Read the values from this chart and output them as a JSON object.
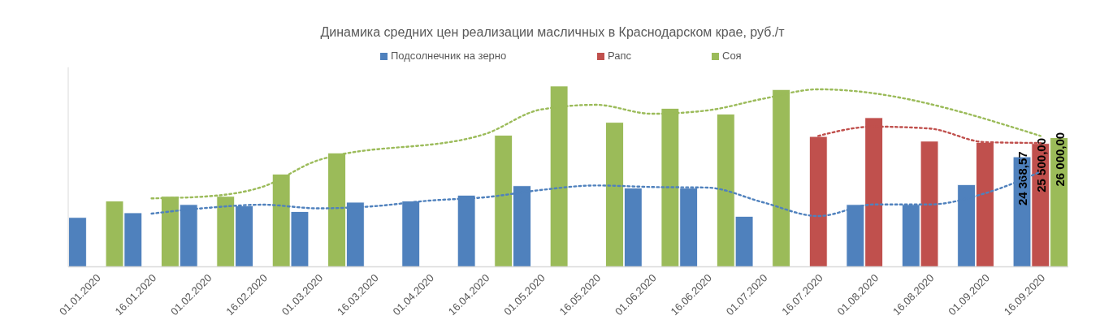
{
  "chart_data": {
    "type": "bar",
    "title": "Динамика средних цен реализации масличных в Краснодарском крае, руб./т",
    "categories": [
      "01.01.2020",
      "16.01.2020",
      "01.02.2020",
      "16.02.2020",
      "01.03.2020",
      "16.03.2020",
      "01.04.2020",
      "16.04.2020",
      "01.05.2020",
      "16.05.2020",
      "01.06.2020",
      "16.06.2020",
      "01.07.2020",
      "16.07.2020",
      "01.08.2020",
      "16.08.2020",
      "01.09.2020",
      "16.09.2020"
    ],
    "ylim": [
      15000,
      32000
    ],
    "legend": "top",
    "series": [
      {
        "name": "Подсолнечник на зерно",
        "color": "#4f81bd",
        "values": [
          19200,
          19600,
          20300,
          20200,
          19700,
          20500,
          20600,
          21100,
          21900,
          null,
          21700,
          21700,
          19300,
          null,
          20300,
          20300,
          22000,
          24368.57
        ],
        "value_labels": [
          null,
          null,
          null,
          null,
          null,
          null,
          null,
          null,
          null,
          null,
          null,
          null,
          null,
          null,
          null,
          null,
          null,
          "24 368,57"
        ]
      },
      {
        "name": "Рапс",
        "color": "#c0504d",
        "values": [
          null,
          null,
          null,
          null,
          null,
          null,
          null,
          null,
          null,
          null,
          null,
          null,
          null,
          26100,
          27700,
          25700,
          25600,
          25500
        ],
        "value_labels": [
          null,
          null,
          null,
          null,
          null,
          null,
          null,
          null,
          null,
          null,
          null,
          null,
          null,
          null,
          null,
          null,
          null,
          "25 500,00"
        ]
      },
      {
        "name": "Соя",
        "color": "#9bbb59",
        "values": [
          20600,
          21000,
          21000,
          22900,
          24700,
          null,
          null,
          26200,
          30400,
          27300,
          28500,
          28000,
          30100,
          null,
          null,
          null,
          null,
          26000
        ],
        "value_labels": [
          null,
          null,
          null,
          null,
          null,
          null,
          null,
          null,
          null,
          null,
          null,
          null,
          null,
          null,
          null,
          null,
          null,
          "26 000,00"
        ]
      },
      {
        "type": "line",
        "color": "#4f81bd",
        "line_style": "dotted",
        "values": [
          null,
          19530,
          20020,
          20290,
          19980,
          20160,
          20640,
          20920,
          21540,
          21930,
          21800,
          21750,
          20500,
          19320,
          20310,
          20310,
          21260,
          23100
        ]
      },
      {
        "type": "line",
        "color": "#c0504d",
        "line_style": "dotted",
        "values": [
          null,
          null,
          null,
          null,
          null,
          null,
          null,
          null,
          null,
          null,
          null,
          null,
          null,
          26150,
          26940,
          26780,
          25620,
          25550
        ]
      },
      {
        "type": "line",
        "color": "#9bbb59",
        "line_style": "dotted",
        "values": [
          null,
          20830,
          21000,
          21820,
          24080,
          null,
          null,
          26310,
          28390,
          28800,
          28040,
          28320,
          29310,
          30120,
          null,
          null,
          null,
          26150
        ]
      }
    ]
  }
}
